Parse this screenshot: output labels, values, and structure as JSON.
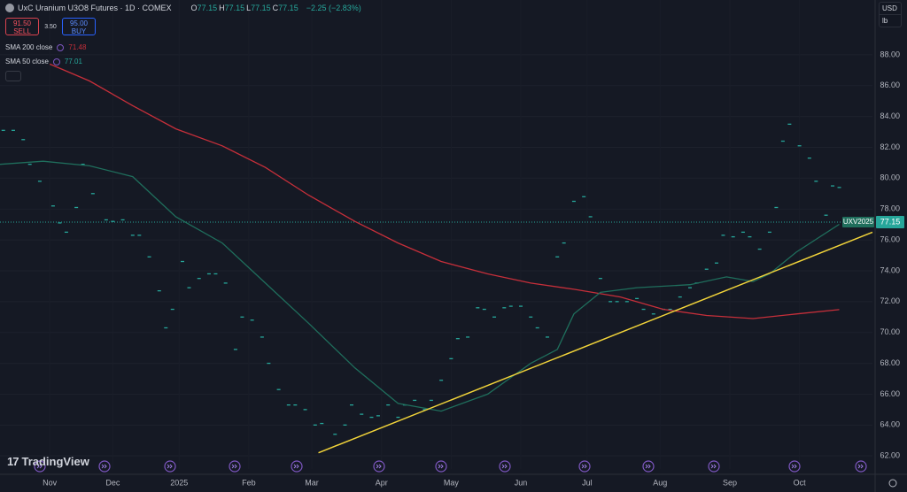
{
  "chart_data": {
    "type": "line",
    "title": "UxC Uranium U3O8 Futures · 1D · COMEX",
    "ohlc": [
      {
        "label": "O",
        "value": 77.15
      },
      {
        "label": "H",
        "value": 77.15
      },
      {
        "label": "L",
        "value": 77.15
      },
      {
        "label": "C",
        "value": 77.15
      }
    ],
    "change": "−2.25 (−2.83%)",
    "trade": {
      "sell_price": "91.50",
      "sell_label": "SELL",
      "spread": "3.50",
      "buy_price": "95.00",
      "buy_label": "BUY"
    },
    "currency": "USD",
    "unit": "lb",
    "branding": "TradingView",
    "xlim": [
      -15,
      248
    ],
    "ylim": [
      61.15,
      91.55
    ],
    "grid": true,
    "xticks": [
      {
        "value": 0,
        "label": "Nov"
      },
      {
        "value": 19,
        "label": "Dec"
      },
      {
        "value": 39,
        "label": "2025"
      },
      {
        "value": 60,
        "label": "Feb"
      },
      {
        "value": 79,
        "label": "Mar"
      },
      {
        "value": 100,
        "label": "Apr"
      },
      {
        "value": 121,
        "label": "May"
      },
      {
        "value": 142,
        "label": "Jun"
      },
      {
        "value": 162,
        "label": "Jul"
      },
      {
        "value": 184,
        "label": "Aug"
      },
      {
        "value": 205,
        "label": "Sep"
      },
      {
        "value": 226,
        "label": "Oct"
      }
    ],
    "yticks": [
      {
        "value": 62,
        "label": "62.00"
      },
      {
        "value": 64,
        "label": "64.00"
      },
      {
        "value": 66,
        "label": "66.00"
      },
      {
        "value": 68,
        "label": "68.00"
      },
      {
        "value": 70,
        "label": "70.00"
      },
      {
        "value": 72,
        "label": "72.00"
      },
      {
        "value": 74,
        "label": "74.00"
      },
      {
        "value": 76,
        "label": "76.00"
      },
      {
        "value": 78,
        "label": "78.00"
      },
      {
        "value": 80,
        "label": "80.00"
      },
      {
        "value": 82,
        "label": "82.00"
      },
      {
        "value": 84,
        "label": "84.00"
      },
      {
        "value": 86,
        "label": "86.00"
      },
      {
        "value": 88,
        "label": "88.00"
      }
    ],
    "series": [
      {
        "name": "UXV2025",
        "style": "markers",
        "color": "#26a69a",
        "last_value": 77.15,
        "x": [
          -14,
          -11,
          -8,
          -6,
          -3,
          1,
          3,
          5,
          8,
          10,
          13,
          17,
          19,
          22,
          25,
          27,
          30,
          33,
          35,
          37,
          40,
          42,
          45,
          48,
          50,
          53,
          56,
          58,
          61,
          64,
          66,
          69,
          72,
          74,
          77,
          80,
          82,
          86,
          89,
          91,
          94,
          97,
          99,
          102,
          105,
          107,
          110,
          113,
          115,
          118,
          121,
          123,
          126,
          129,
          131,
          134,
          137,
          139,
          142,
          145,
          147,
          150,
          153,
          155,
          158,
          161,
          163,
          166,
          169,
          171,
          174,
          177,
          179,
          182,
          185,
          187,
          190,
          193,
          195,
          198,
          201,
          203,
          206,
          209,
          211,
          214,
          217,
          219,
          221,
          223,
          226,
          229,
          231,
          234,
          236,
          238,
          240
        ],
        "values": [
          83.1,
          83.1,
          82.5,
          80.9,
          79.8,
          78.2,
          77.1,
          76.5,
          78.1,
          80.9,
          79.0,
          77.3,
          77.2,
          77.3,
          76.3,
          76.3,
          74.9,
          72.7,
          70.3,
          71.5,
          74.6,
          72.9,
          73.5,
          73.8,
          73.8,
          73.2,
          68.9,
          71.0,
          70.8,
          69.7,
          68.0,
          66.3,
          65.3,
          65.3,
          65.0,
          64.0,
          64.1,
          63.4,
          64.0,
          65.3,
          64.7,
          64.5,
          64.6,
          65.3,
          64.5,
          65.3,
          65.6,
          65.0,
          65.6,
          66.9,
          68.3,
          69.6,
          69.7,
          71.6,
          71.5,
          71.0,
          71.6,
          71.7,
          71.7,
          71.0,
          70.3,
          69.7,
          74.9,
          75.8,
          78.5,
          78.8,
          77.5,
          73.5,
          72.0,
          72.0,
          72.0,
          72.2,
          71.5,
          71.2,
          71.5,
          71.5,
          72.3,
          72.9,
          73.2,
          74.1,
          74.5,
          76.3,
          76.2,
          76.5,
          76.2,
          75.4,
          76.5,
          78.1,
          82.4,
          83.5,
          82.1,
          81.3,
          79.8,
          77.6,
          79.5,
          79.4,
          77.15
        ]
      },
      {
        "name": "SMA 200 close",
        "style": "line",
        "color": "#c62f3a",
        "last_value": 71.48,
        "x": [
          0,
          12,
          25,
          38,
          52,
          65,
          78,
          92,
          105,
          118,
          132,
          145,
          158,
          172,
          185,
          198,
          212,
          225,
          238
        ],
        "values": [
          87.4,
          86.3,
          84.7,
          83.2,
          82.1,
          80.7,
          78.9,
          77.2,
          75.8,
          74.6,
          73.8,
          73.2,
          72.8,
          72.3,
          71.5,
          71.1,
          70.9,
          71.2,
          71.48
        ]
      },
      {
        "name": "SMA 50 close",
        "style": "line",
        "color": "#1f6e5c",
        "last_value": 77.01,
        "x": [
          -15,
          -2,
          12,
          25,
          38,
          52,
          65,
          78,
          92,
          105,
          118,
          132,
          145,
          153,
          158,
          166,
          177,
          193,
          204,
          212,
          217,
          225,
          238
        ],
        "values": [
          80.9,
          81.1,
          80.8,
          80.1,
          77.5,
          75.8,
          73.2,
          70.6,
          67.7,
          65.4,
          64.9,
          66.0,
          68.0,
          68.9,
          71.2,
          72.6,
          72.9,
          73.1,
          73.6,
          73.3,
          73.8,
          75.2,
          77.01
        ]
      }
    ],
    "trendline": {
      "color": "#f2d43a",
      "x": [
        81,
        248
      ],
      "values": [
        62.2,
        76.5
      ]
    }
  }
}
